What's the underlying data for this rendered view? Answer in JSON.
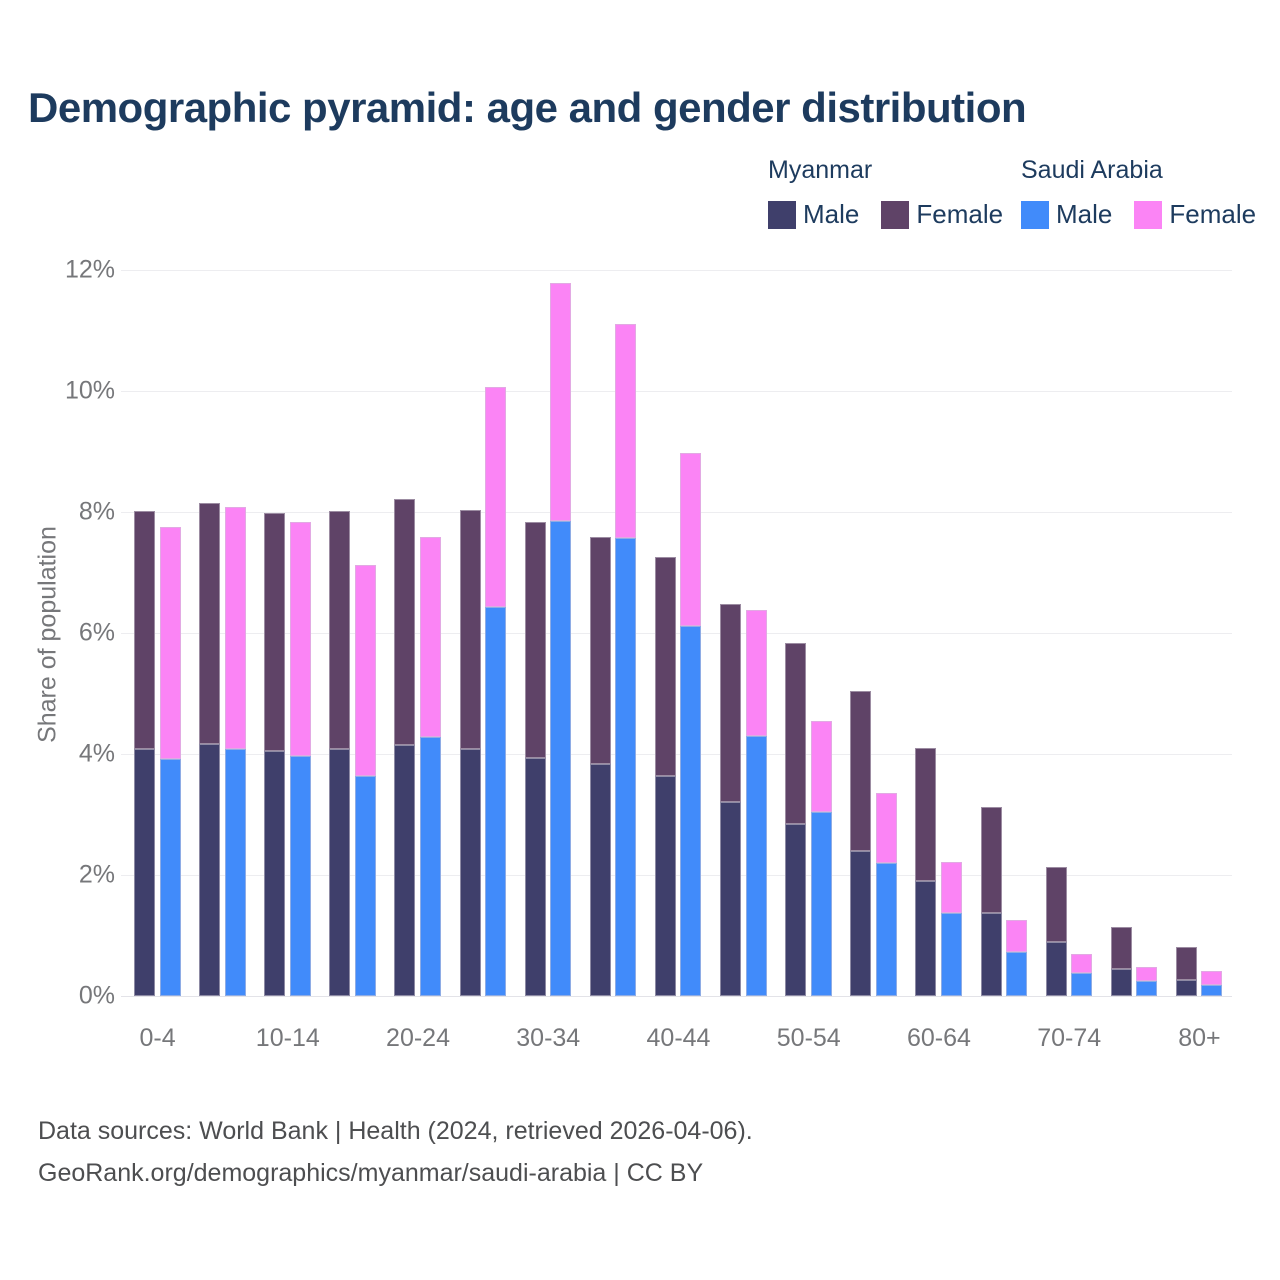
{
  "header": {
    "title": "Demographic pyramid: age and gender distribution"
  },
  "legend": {
    "groups": [
      {
        "name": "Myanmar",
        "items": [
          {
            "label": "Male",
            "color": "#3F3F6B"
          },
          {
            "label": "Female",
            "color": "#5F4367"
          }
        ]
      },
      {
        "name": "Saudi Arabia",
        "items": [
          {
            "label": "Male",
            "color": "#418BFA"
          },
          {
            "label": "Female",
            "color": "#FB84F5"
          }
        ]
      }
    ]
  },
  "chart_data": {
    "type": "bar",
    "stacked": true,
    "title": "Demographic pyramid: age and gender distribution",
    "xlabel": "",
    "ylabel": "Share of population",
    "ylim": [
      0,
      12
    ],
    "yticks": [
      0,
      2,
      4,
      6,
      8,
      10,
      12
    ],
    "ytick_labels": [
      "0%",
      "2%",
      "4%",
      "6%",
      "8%",
      "10%",
      "12%"
    ],
    "grid": true,
    "legend_position": "top-right",
    "categories": [
      "0-4",
      "5-9",
      "10-14",
      "15-19",
      "20-24",
      "25-29",
      "30-34",
      "35-39",
      "40-44",
      "45-49",
      "50-54",
      "55-59",
      "60-64",
      "65-69",
      "70-74",
      "75-79",
      "80+"
    ],
    "xtick_labels_shown": [
      "0-4",
      "10-14",
      "20-24",
      "30-34",
      "40-44",
      "50-54",
      "60-64",
      "70-74",
      "80+"
    ],
    "series": [
      {
        "name": "Myanmar Male",
        "stack": "myanmar",
        "color": "#3F3F6B",
        "values": [
          4.09,
          4.17,
          4.05,
          4.08,
          4.15,
          4.09,
          3.94,
          3.83,
          3.63,
          3.21,
          2.84,
          2.4,
          1.9,
          1.38,
          0.9,
          0.44,
          0.27
        ]
      },
      {
        "name": "Myanmar Female",
        "stack": "myanmar",
        "color": "#5F4367",
        "values": [
          3.93,
          3.98,
          3.93,
          3.94,
          4.06,
          3.95,
          3.89,
          3.76,
          3.62,
          3.27,
          2.99,
          2.64,
          2.2,
          1.75,
          1.24,
          0.7,
          0.54
        ]
      },
      {
        "name": "Saudi Arabia Male",
        "stack": "saudi",
        "color": "#418BFA",
        "values": [
          3.92,
          4.08,
          3.97,
          3.63,
          4.28,
          6.43,
          7.85,
          7.57,
          6.11,
          4.29,
          3.04,
          2.2,
          1.38,
          0.72,
          0.38,
          0.24,
          0.18
        ]
      },
      {
        "name": "Saudi Arabia Female",
        "stack": "saudi",
        "color": "#FB84F5",
        "values": [
          3.83,
          4.0,
          3.86,
          3.49,
          3.3,
          3.64,
          3.93,
          3.53,
          2.87,
          2.09,
          1.51,
          1.16,
          0.84,
          0.54,
          0.32,
          0.24,
          0.24
        ]
      }
    ]
  },
  "footer": {
    "line1": "Data sources: World Bank | Health (2024, retrieved 2026-04-06).",
    "line2": "GeoRank.org/demographics/myanmar/saudi-arabia | CC BY"
  }
}
